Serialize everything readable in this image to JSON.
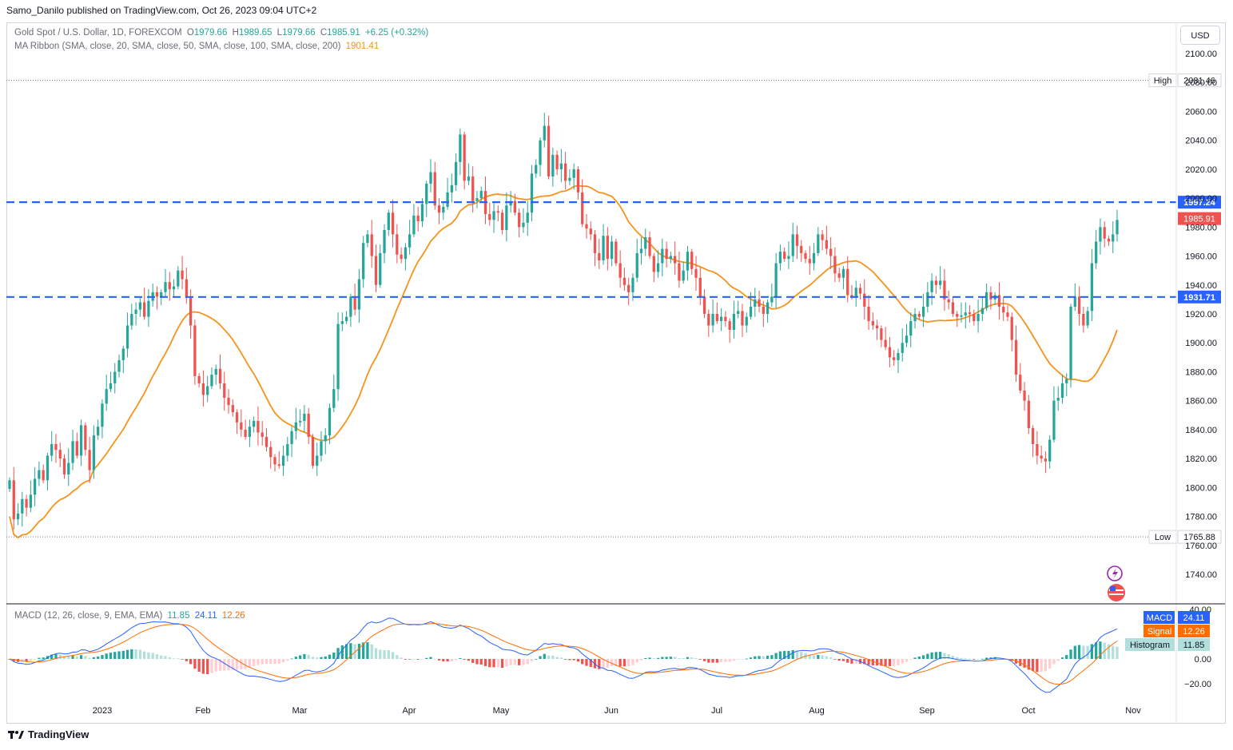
{
  "header": {
    "publisher_line": "Samo_Danilo published on TradingView.com, Oct 26, 2023 09:04 UTC+2"
  },
  "legend": {
    "symbol": "Gold Spot / U.S. Dollar, 1D, FOREXCOM",
    "open_label": "O",
    "open": "1979.66",
    "high_label": "H",
    "high": "1989.65",
    "low_label": "L",
    "low": "1979.66",
    "close_label": "C",
    "close": "1985.91",
    "change": "+6.25 (+0.32%)",
    "ma_label": "MA Ribbon (SMA, close, 20, SMA, close, 50, SMA, close, 100, SMA, close, 200)",
    "ma_value": "1901.41",
    "macd_label": "MACD (12, 26, close, 9, EMA, EMA)",
    "macd_hist": "11.85",
    "macd_value": "24.11",
    "macd_signal": "12.26"
  },
  "currency": "USD",
  "footer": {
    "brand": "TradingView"
  },
  "colors": {
    "up": "#26a69a",
    "down": "#ef5350",
    "ma": "#f7931a",
    "level": "#2962ff",
    "macd": "#2962ff",
    "signal": "#ff6d00"
  },
  "chart_data": [
    {
      "type": "candlestick",
      "title": "Gold Spot / U.S. Dollar, 1D, FOREXCOM",
      "x_tick_labels": [
        "2023",
        "Feb",
        "Mar",
        "Apr",
        "May",
        "Jun",
        "Jul",
        "Aug",
        "Sep",
        "Oct",
        "Nov"
      ],
      "y_ticks": [
        1740,
        1760,
        1780,
        1800,
        1820,
        1840,
        1860,
        1880,
        1900,
        1920,
        1940,
        1960,
        1980,
        2000,
        2020,
        2040,
        2060,
        2080,
        2100
      ],
      "ylim": [
        1740,
        2100
      ],
      "close_series": [
        1805,
        1778,
        1782,
        1792,
        1786,
        1795,
        1806,
        1812,
        1805,
        1822,
        1830,
        1826,
        1820,
        1809,
        1817,
        1832,
        1822,
        1843,
        1826,
        1812,
        1836,
        1842,
        1858,
        1868,
        1872,
        1880,
        1888,
        1896,
        1912,
        1920,
        1923,
        1928,
        1918,
        1929,
        1935,
        1932,
        1935,
        1942,
        1937,
        1939,
        1950,
        1944,
        1931,
        1912,
        1877,
        1872,
        1864,
        1870,
        1878,
        1882,
        1872,
        1862,
        1857,
        1852,
        1845,
        1840,
        1835,
        1842,
        1846,
        1838,
        1835,
        1828,
        1821,
        1816,
        1815,
        1822,
        1830,
        1839,
        1845,
        1846,
        1851,
        1835,
        1815,
        1822,
        1832,
        1836,
        1855,
        1868,
        1913,
        1915,
        1918,
        1932,
        1923,
        1944,
        1969,
        1975,
        1960,
        1940,
        1962,
        1978,
        1990,
        1975,
        1961,
        1958,
        1966,
        1975,
        1988,
        1984,
        1996,
        2010,
        2018,
        1995,
        1990,
        1994,
        2004,
        2009,
        2025,
        2044,
        2012,
        2015,
        1998,
        2000,
        2005,
        1989,
        1985,
        1991,
        1990,
        1978,
        1995,
        1998,
        1990,
        1980,
        1983,
        1990,
        2017,
        2023,
        2040,
        2050,
        2015,
        2030,
        2020,
        2024,
        2012,
        2014,
        2020,
        2004,
        1982,
        1979,
        1975,
        1962,
        1957,
        1974,
        1958,
        1970,
        1955,
        1945,
        1940,
        1935,
        1945,
        1962,
        1965,
        1973,
        1960,
        1949,
        1955,
        1965,
        1958,
        1960,
        1955,
        1943,
        1950,
        1963,
        1951,
        1945,
        1932,
        1920,
        1912,
        1920,
        1915,
        1918,
        1915,
        1909,
        1920,
        1922,
        1912,
        1918,
        1925,
        1930,
        1925,
        1920,
        1928,
        1932,
        1955,
        1963,
        1958,
        1960,
        1975,
        1967,
        1962,
        1958,
        1955,
        1962,
        1975,
        1971,
        1965,
        1960,
        1948,
        1945,
        1951,
        1933,
        1932,
        1938,
        1934,
        1925,
        1915,
        1912,
        1910,
        1902,
        1897,
        1890,
        1888,
        1893,
        1900,
        1905,
        1915,
        1920,
        1918,
        1925,
        1935,
        1943,
        1940,
        1943,
        1930,
        1928,
        1920,
        1918,
        1919,
        1921,
        1920,
        1915,
        1920,
        1924,
        1935,
        1930,
        1933,
        1925,
        1921,
        1918,
        1902,
        1878,
        1867,
        1860,
        1841,
        1830,
        1822,
        1820,
        1818,
        1833,
        1860,
        1862,
        1872,
        1875,
        1925,
        1932,
        1920,
        1912,
        1922,
        1955,
        1970,
        1980,
        1972,
        1970,
        1975,
        1985
      ]
    },
    {
      "type": "line",
      "name": "MA Ribbon (SMA, close, 20, SMA, close, 50, SMA, close, 100, SMA, close, 200)",
      "last_value": 1901.41
    },
    {
      "type": "level_lines",
      "values": [
        1997.24,
        1931.71
      ],
      "high_label": "High",
      "high": 2081.46,
      "low_label": "Low",
      "low": 1765.88,
      "last_price": 1985.91
    },
    {
      "type": "macd",
      "series": [
        {
          "name": "MACD",
          "last": 24.11
        },
        {
          "name": "Signal",
          "last": 12.26
        },
        {
          "name": "Histogram",
          "last": 11.85
        }
      ],
      "y_ticks": [
        40,
        0,
        -20
      ],
      "y_tick_labels": [
        "40.00",
        "0.00",
        "−20.00"
      ]
    }
  ]
}
